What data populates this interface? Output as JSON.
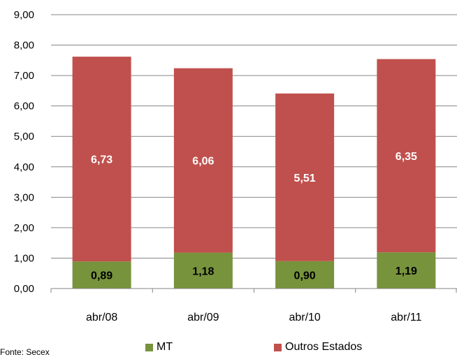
{
  "chart_data": {
    "type": "bar",
    "stacked": true,
    "categories": [
      "abr/08",
      "abr/09",
      "abr/10",
      "abr/11"
    ],
    "series": [
      {
        "name": "MT",
        "values": [
          0.89,
          1.18,
          0.9,
          1.19
        ],
        "labels": [
          "0,89",
          "1,18",
          "0,90",
          "1,19"
        ],
        "color": "#77933c",
        "label_color": "#000000"
      },
      {
        "name": "Outros Estados",
        "values": [
          6.73,
          6.06,
          5.51,
          6.35
        ],
        "labels": [
          "6,73",
          "6,06",
          "5,51",
          "6,35"
        ],
        "color": "#c0504d",
        "label_color": "#ffffff"
      }
    ],
    "ylim": [
      0,
      9
    ],
    "yticks": [
      0,
      1,
      2,
      3,
      4,
      5,
      6,
      7,
      8,
      9
    ],
    "ytick_labels": [
      "0,00",
      "1,00",
      "2,00",
      "3,00",
      "4,00",
      "5,00",
      "6,00",
      "7,00",
      "8,00",
      "9,00"
    ],
    "grid": true,
    "legend_position": "bottom"
  },
  "source": "Fonte: Secex"
}
